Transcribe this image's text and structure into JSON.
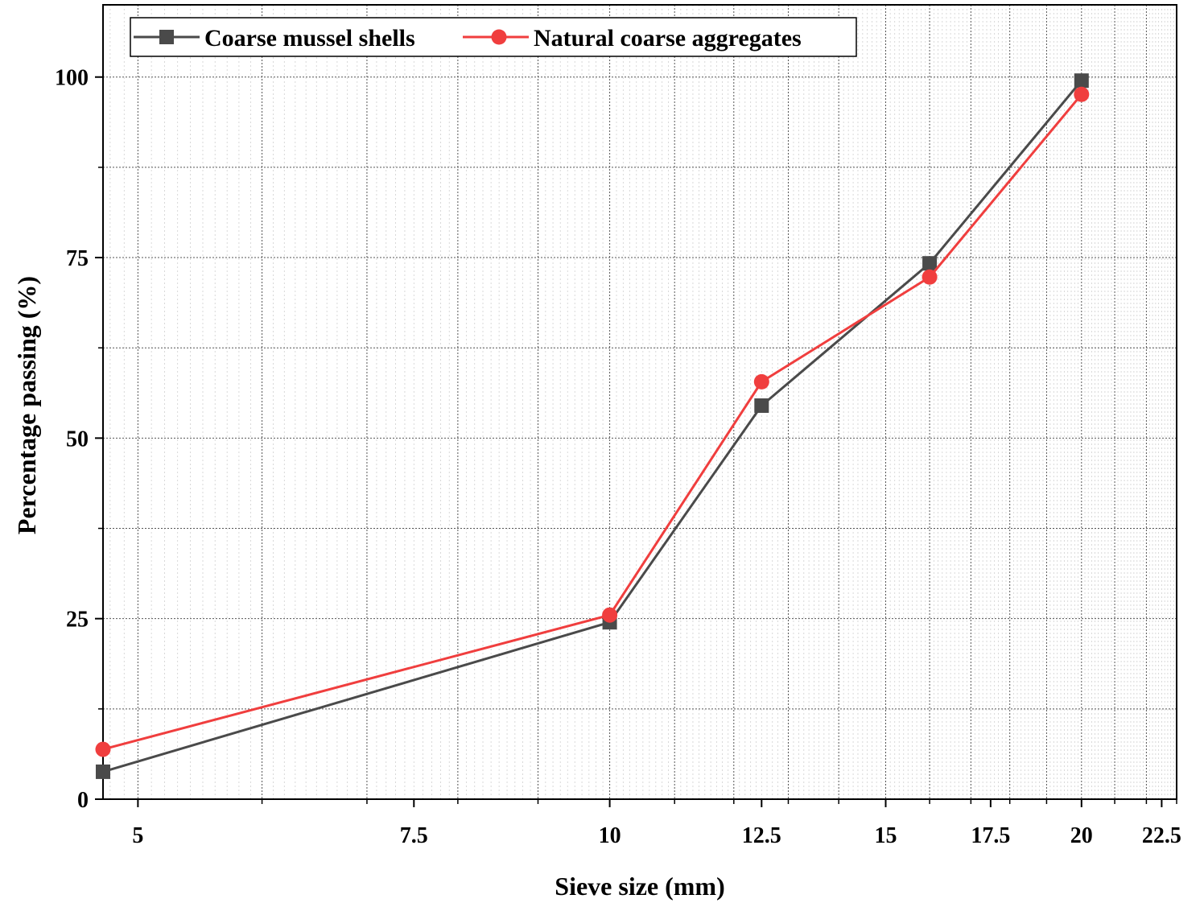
{
  "chart_data": {
    "type": "line",
    "xlabel": "Sieve size (mm)",
    "ylabel": "Percentage passing (%)",
    "x_scale": "log",
    "xlim": [
      4.75,
      23
    ],
    "ylim": [
      0,
      110
    ],
    "x_ticks": [
      5,
      7.5,
      10,
      12.5,
      15,
      17.5,
      20,
      22.5
    ],
    "x_tick_labels": [
      "5",
      "7.5",
      "10",
      "12.5",
      "15",
      "17.5",
      "20",
      "22.5"
    ],
    "y_ticks": [
      0,
      25,
      50,
      75,
      100
    ],
    "y_tick_labels": [
      "0",
      "25",
      "50",
      "75",
      "100"
    ],
    "grid": true,
    "legend_position": "top-left",
    "series": [
      {
        "name": "Coarse mussel shells",
        "color": "#4a4a4a",
        "marker": "square",
        "x": [
          4.75,
          10,
          12.5,
          16,
          20
        ],
        "y": [
          3.8,
          24.5,
          54.5,
          74.2,
          99.5
        ]
      },
      {
        "name": "Natural coarse aggregates",
        "color": "#f03e3e",
        "marker": "circle",
        "x": [
          4.75,
          10,
          12.5,
          16,
          20
        ],
        "y": [
          6.9,
          25.5,
          57.8,
          72.3,
          97.6
        ]
      }
    ]
  }
}
